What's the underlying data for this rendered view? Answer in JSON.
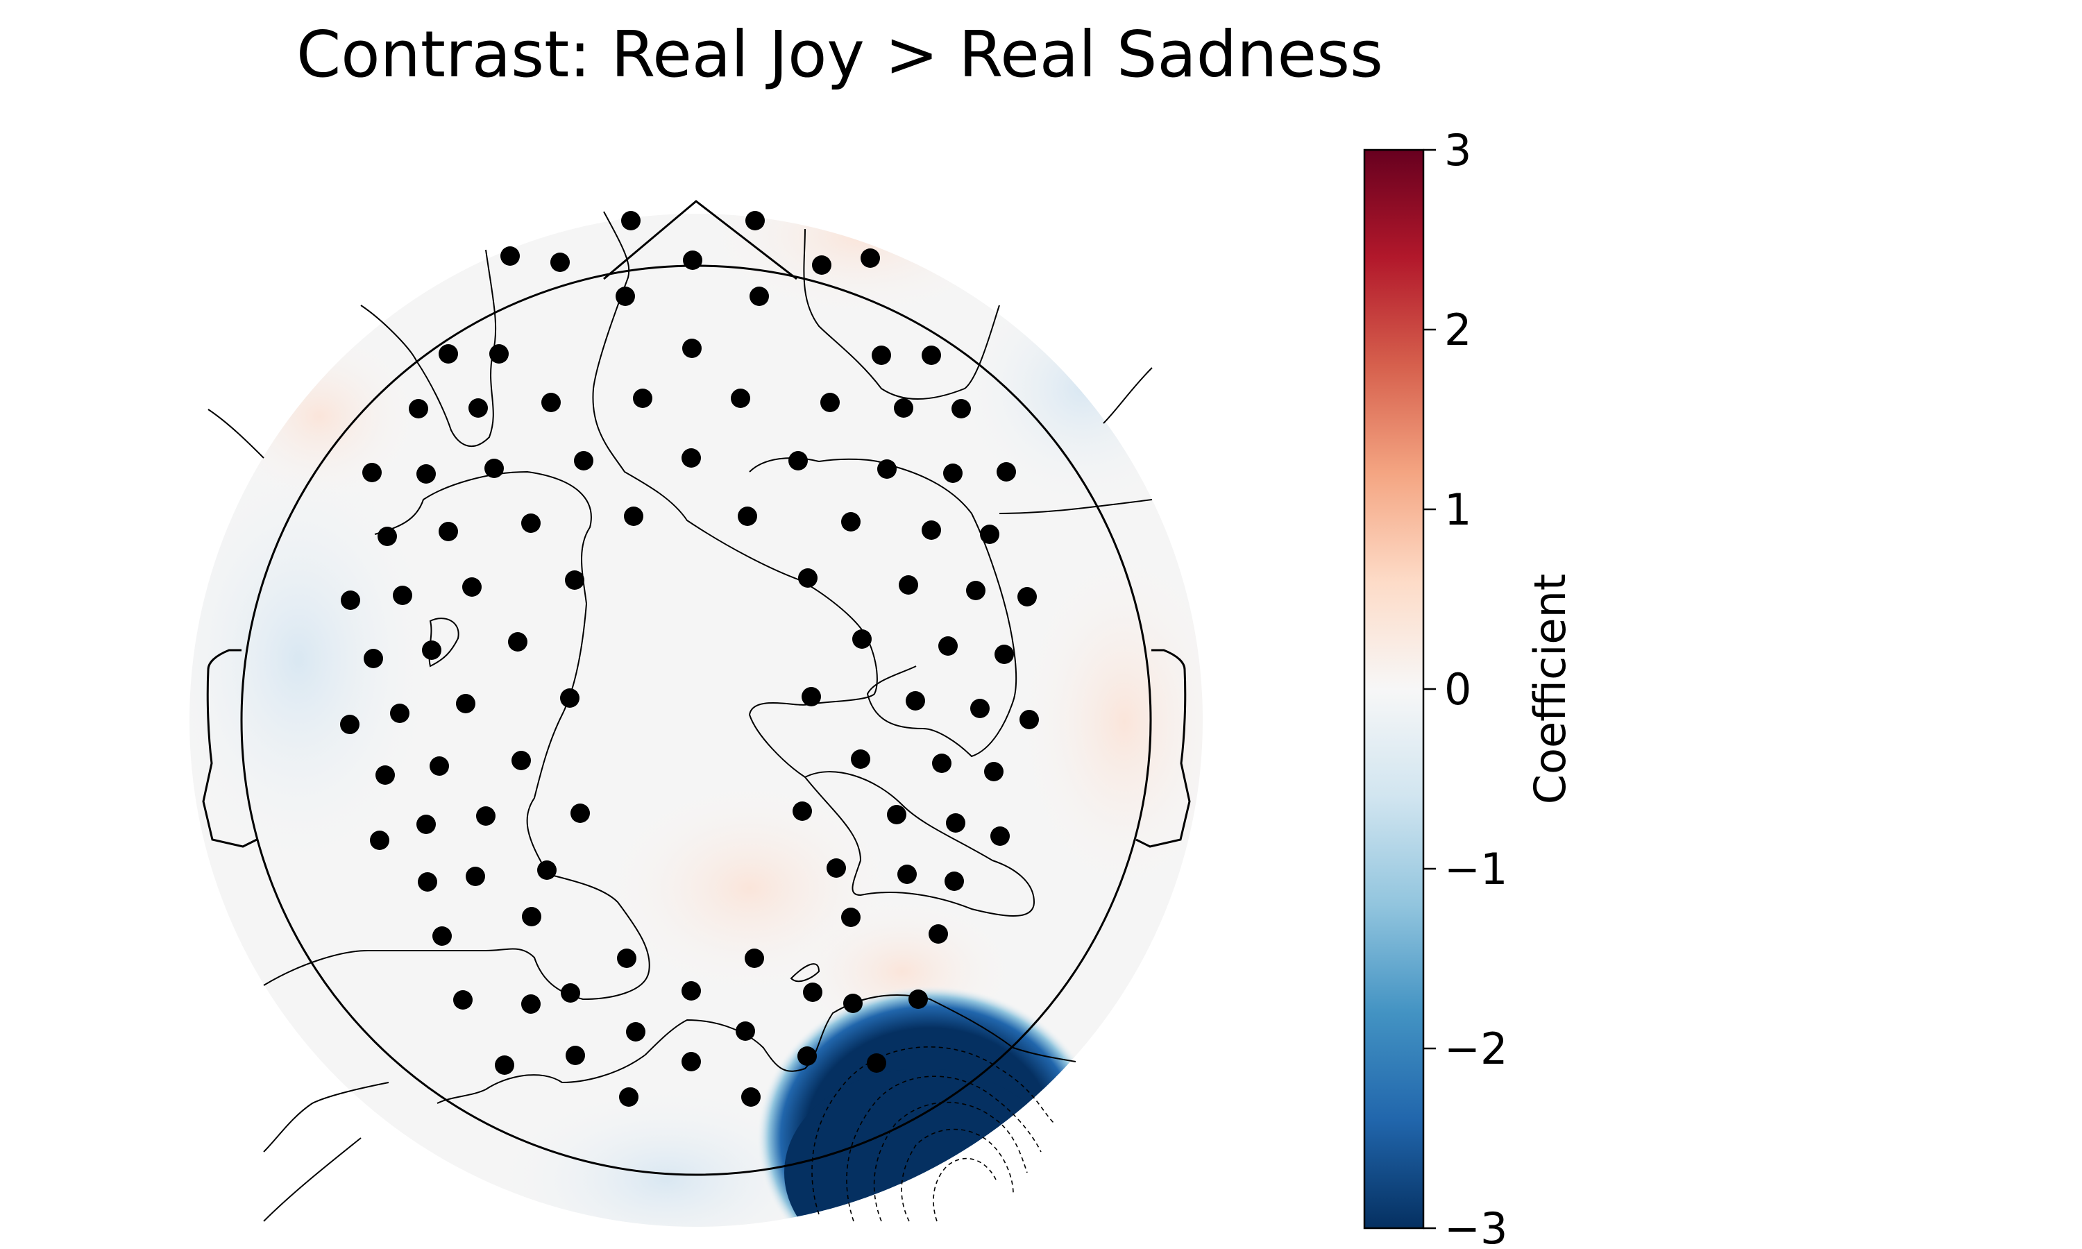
{
  "chart_data": {
    "type": "heatmap",
    "subtype": "eeg-topomap",
    "title": "Contrast: Real Joy > Real Sadness",
    "colorbar": {
      "label": "Coefficient",
      "range": [
        -3,
        3
      ],
      "ticks": [
        3,
        2,
        1,
        0,
        -1,
        -2,
        -3
      ],
      "tick_labels": [
        "3",
        "2",
        "1",
        "0",
        "−1",
        "−2",
        "−3"
      ],
      "colormap": [
        "#053061",
        "#2166ac",
        "#4393c3",
        "#92c5de",
        "#d1e5f0",
        "#f7f7f7",
        "#fddbc7",
        "#f4a582",
        "#d6604d",
        "#b2182b",
        "#67001f"
      ]
    },
    "features": {
      "strong_negative_cluster": {
        "location": "right-posterior/occipital",
        "value": -3
      },
      "background": "near zero",
      "sensor_count": 128
    },
    "colors": {
      "head_outline": "#000000",
      "sensor": "#000000",
      "near_zero": "#f7f7f7",
      "negative_peak": "#053061"
    }
  }
}
